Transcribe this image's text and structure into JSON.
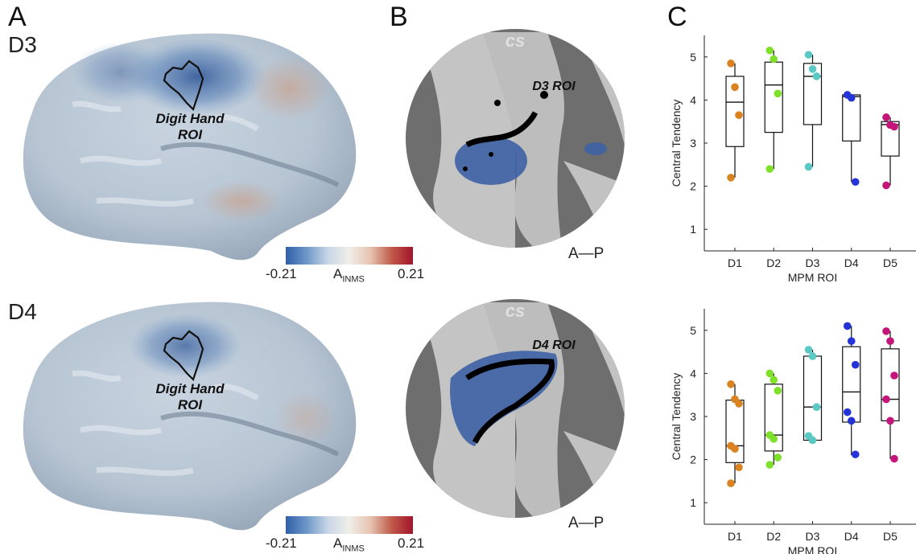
{
  "panels": {
    "A": "A",
    "B": "B",
    "C": "C"
  },
  "rows": [
    {
      "label": "D3",
      "roi_label_line1": "Digit Hand",
      "roi_label_line2": "ROI",
      "flat_roi_label": "D3 ROI",
      "cs_label": "cs",
      "ap_label": "A—P",
      "colorbar": {
        "min": "-0.21",
        "max": "0.21",
        "label_main": "A",
        "label_sub": "INMS"
      }
    },
    {
      "label": "D4",
      "roi_label_line1": "Digit Hand",
      "roi_label_line2": "ROI",
      "flat_roi_label": "D4 ROI",
      "cs_label": "cs",
      "ap_label": "A—P",
      "colorbar": {
        "min": "-0.21",
        "max": "0.21",
        "label_main": "A",
        "label_sub": "INMS"
      }
    }
  ],
  "colors": {
    "D1": "#d9821f",
    "D2": "#7fe02a",
    "D3": "#5bc9c3",
    "D4": "#2434d6",
    "D5": "#c4157a",
    "cbar_low": "#2f5fa8",
    "cbar_high": "#a3132a"
  },
  "chart_data": [
    {
      "type": "box",
      "xlabel": "MPM ROI",
      "ylabel": "Central Tendency",
      "categories": [
        "D1",
        "D2",
        "D3",
        "D4",
        "D5"
      ],
      "ylim": [
        0.5,
        5.5
      ],
      "yticks": [
        1,
        2,
        3,
        4,
        5
      ],
      "boxes": [
        {
          "name": "D1",
          "min": 2.2,
          "q1": 2.92,
          "median": 3.95,
          "q3": 4.55,
          "max": 4.85,
          "points": [
            4.85,
            4.3,
            3.65,
            2.2
          ]
        },
        {
          "name": "D2",
          "min": 2.4,
          "q1": 3.25,
          "median": 4.35,
          "q3": 4.88,
          "max": 5.15,
          "points": [
            5.15,
            4.95,
            4.15,
            2.4
          ]
        },
        {
          "name": "D3",
          "min": 2.45,
          "q1": 3.43,
          "median": 4.55,
          "q3": 4.85,
          "max": 5.05,
          "points": [
            5.05,
            4.72,
            4.55,
            2.45
          ]
        },
        {
          "name": "D4",
          "min": 2.1,
          "q1": 3.05,
          "median": 4.08,
          "q3": 4.12,
          "max": 4.12,
          "points": [
            4.12,
            4.05,
            2.1
          ]
        },
        {
          "name": "D5",
          "min": 2.02,
          "q1": 2.7,
          "median": 3.43,
          "q3": 3.5,
          "max": 3.6,
          "points": [
            3.6,
            3.42,
            3.38,
            2.02
          ]
        }
      ]
    },
    {
      "type": "box",
      "xlabel": "MPM ROI",
      "ylabel": "Central Tendency",
      "categories": [
        "D1",
        "D2",
        "D3",
        "D4",
        "D5"
      ],
      "ylim": [
        0.5,
        5.5
      ],
      "yticks": [
        1,
        2,
        3,
        4,
        5
      ],
      "boxes": [
        {
          "name": "D1",
          "min": 1.45,
          "q1": 1.93,
          "median": 2.32,
          "q3": 3.38,
          "max": 3.75,
          "points": [
            3.75,
            3.4,
            3.3,
            2.32,
            2.25,
            1.82,
            1.45
          ]
        },
        {
          "name": "D2",
          "min": 1.88,
          "q1": 2.2,
          "median": 2.57,
          "q3": 3.75,
          "max": 4.0,
          "points": [
            4.0,
            3.85,
            3.6,
            2.57,
            2.48,
            2.05,
            1.88
          ]
        },
        {
          "name": "D3",
          "min": 2.45,
          "q1": 2.45,
          "median": 3.22,
          "q3": 4.4,
          "max": 4.55,
          "points": [
            4.55,
            4.4,
            3.22,
            2.55,
            2.45
          ]
        },
        {
          "name": "D4",
          "min": 2.1,
          "q1": 2.87,
          "median": 3.57,
          "q3": 4.62,
          "max": 5.1,
          "points": [
            5.1,
            4.75,
            4.2,
            3.1,
            2.9,
            2.12
          ]
        },
        {
          "name": "D5",
          "min": 2.02,
          "q1": 2.9,
          "median": 3.4,
          "q3": 4.57,
          "max": 4.98,
          "points": [
            4.98,
            4.75,
            3.95,
            3.4,
            2.9,
            2.02
          ]
        }
      ]
    }
  ]
}
